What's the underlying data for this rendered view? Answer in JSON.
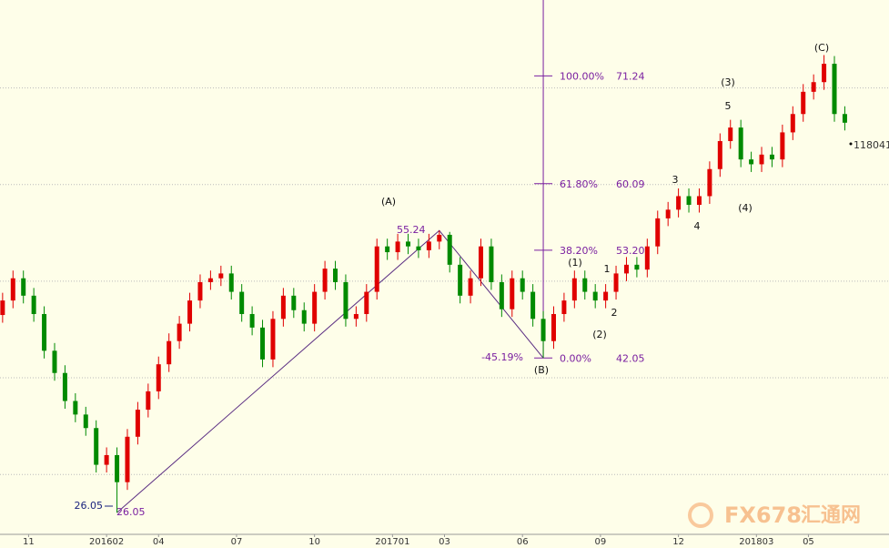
{
  "chart_data": {
    "type": "candlestick",
    "x": [
      -1.0,
      -0.6,
      -0.2,
      0.2,
      0.6,
      1.0,
      1.4,
      1.8,
      2.2,
      2.6,
      3.0,
      3.4,
      3.8,
      4.2,
      4.6,
      5.0,
      5.4,
      5.8,
      6.2,
      6.6,
      7.0,
      7.4,
      7.8,
      8.2,
      8.6,
      9.0,
      9.4,
      9.8,
      10.2,
      10.6,
      11.0,
      11.4,
      11.8,
      12.2,
      12.6,
      13.0,
      13.4,
      13.8,
      14.2,
      14.6,
      15.0,
      15.4,
      15.8,
      16.2,
      16.6,
      17.0,
      17.4,
      17.8,
      18.2,
      18.6,
      19.0,
      19.4,
      19.8,
      20.2,
      20.6,
      21.0,
      21.4,
      21.8,
      22.2,
      22.6,
      23.0,
      23.4,
      23.8,
      24.2,
      24.6,
      25.0,
      25.4,
      25.8,
      26.2,
      26.6,
      27.0,
      27.4,
      27.8,
      28.2,
      28.6,
      29.0,
      29.4,
      29.8,
      30.2,
      30.6,
      31.0,
      31.4
    ],
    "open": [
      46.5,
      48.0,
      50.3,
      48.5,
      46.6,
      42.8,
      40.5,
      37.6,
      36.2,
      34.8,
      31.0,
      32.0,
      29.2,
      33.9,
      36.7,
      38.6,
      41.4,
      43.8,
      45.6,
      48.0,
      49.9,
      50.3,
      50.8,
      48.9,
      46.6,
      45.2,
      41.9,
      46.1,
      48.5,
      47.0,
      45.6,
      48.9,
      51.3,
      49.9,
      46.1,
      46.6,
      48.9,
      53.6,
      53.0,
      54.1,
      53.6,
      53.2,
      54.1,
      54.8,
      51.7,
      48.5,
      50.3,
      53.6,
      49.9,
      47.1,
      50.3,
      48.9,
      46.1,
      43.8,
      46.6,
      48.0,
      50.3,
      48.9,
      48.0,
      48.9,
      50.8,
      51.7,
      51.2,
      53.6,
      56.5,
      57.4,
      58.8,
      57.9,
      58.8,
      61.6,
      64.5,
      65.9,
      62.6,
      62.1,
      63.1,
      62.6,
      65.4,
      67.3,
      69.6,
      70.6,
      72.5,
      67.3
    ],
    "high": [
      48.8,
      51.1,
      51.1,
      49.3,
      47.4,
      43.6,
      41.3,
      38.4,
      37.0,
      35.6,
      32.8,
      32.8,
      34.7,
      37.5,
      39.4,
      42.2,
      44.6,
      46.4,
      48.8,
      50.7,
      51.1,
      51.6,
      51.6,
      49.7,
      47.4,
      46.0,
      46.9,
      49.3,
      49.3,
      47.8,
      49.7,
      52.1,
      52.1,
      50.7,
      47.4,
      49.7,
      54.4,
      54.4,
      54.9,
      54.9,
      54.4,
      54.9,
      55.24,
      55.1,
      52.5,
      51.1,
      54.4,
      54.4,
      50.7,
      51.1,
      51.1,
      49.7,
      46.9,
      47.4,
      48.8,
      51.1,
      51.1,
      49.7,
      49.7,
      51.6,
      52.5,
      52.5,
      54.4,
      57.3,
      58.2,
      59.6,
      59.6,
      59.6,
      62.4,
      65.3,
      66.7,
      66.7,
      63.4,
      63.9,
      63.9,
      66.2,
      68.1,
      70.4,
      71.4,
      73.4,
      73.3,
      68.1
    ],
    "low": [
      45.7,
      47.2,
      47.7,
      45.8,
      42.0,
      39.7,
      36.8,
      35.4,
      34.0,
      30.2,
      30.2,
      26.05,
      28.4,
      33.1,
      35.9,
      37.8,
      40.6,
      43.0,
      44.8,
      47.2,
      49.1,
      49.5,
      48.1,
      45.8,
      44.4,
      41.1,
      41.1,
      45.3,
      46.2,
      44.8,
      44.8,
      48.1,
      49.1,
      45.3,
      45.3,
      45.8,
      48.1,
      52.2,
      52.2,
      52.8,
      52.4,
      52.4,
      53.3,
      50.9,
      47.7,
      47.7,
      49.5,
      49.1,
      46.3,
      46.3,
      48.1,
      45.3,
      42.05,
      43.0,
      45.8,
      47.2,
      48.1,
      47.2,
      47.2,
      48.1,
      50.0,
      50.4,
      50.4,
      52.8,
      55.7,
      56.6,
      57.1,
      57.1,
      58.0,
      60.8,
      63.7,
      61.8,
      61.3,
      61.3,
      61.8,
      61.8,
      64.6,
      66.5,
      68.8,
      69.8,
      66.5,
      65.6
    ],
    "close": [
      48.0,
      50.3,
      48.5,
      46.6,
      42.8,
      40.5,
      37.6,
      36.2,
      34.8,
      31.0,
      32.0,
      29.2,
      33.9,
      36.7,
      38.6,
      41.4,
      43.8,
      45.6,
      48.0,
      49.9,
      50.3,
      50.8,
      48.9,
      46.6,
      45.2,
      41.9,
      46.1,
      48.5,
      47.0,
      45.6,
      48.9,
      51.3,
      49.9,
      46.1,
      46.6,
      48.9,
      53.6,
      53.0,
      54.1,
      53.6,
      53.2,
      54.1,
      54.8,
      51.7,
      48.5,
      50.3,
      53.6,
      49.9,
      47.1,
      50.3,
      48.9,
      46.1,
      43.8,
      46.6,
      48.0,
      50.3,
      48.9,
      48.0,
      48.9,
      50.8,
      51.7,
      51.2,
      53.6,
      56.5,
      57.4,
      58.8,
      57.9,
      58.8,
      61.6,
      64.5,
      65.9,
      62.6,
      62.1,
      63.1,
      62.6,
      65.4,
      67.3,
      69.6,
      70.6,
      72.5,
      67.3,
      66.4
    ],
    "up_color": "#e00000",
    "down_color": "#008a00",
    "xlim": [
      -1.1,
      33.1
    ],
    "ylim": [
      23.8,
      79.1
    ],
    "xticks": [
      {
        "value": 0,
        "label": "11"
      },
      {
        "value": 3,
        "label": "201602"
      },
      {
        "value": 5,
        "label": "04"
      },
      {
        "value": 8,
        "label": "07"
      },
      {
        "value": 11,
        "label": "10"
      },
      {
        "value": 14,
        "label": "201701"
      },
      {
        "value": 16,
        "label": "03"
      },
      {
        "value": 19,
        "label": "06"
      },
      {
        "value": 22,
        "label": "09"
      },
      {
        "value": 25,
        "label": "12"
      },
      {
        "value": 28,
        "label": "201803"
      },
      {
        "value": 30,
        "label": "05"
      }
    ],
    "yticks": [
      30,
      40,
      50,
      60,
      70
    ],
    "grid": true,
    "fib": {
      "ratios": [
        "100.00%",
        "61.80%",
        "38.20%",
        "0.00%"
      ],
      "values": [
        71.24,
        60.09,
        53.2,
        42.05
      ],
      "value_labels": [
        "71.24",
        "60.09",
        "53.20",
        "42.05"
      ],
      "color": "#7a1fa0"
    },
    "annotations": {
      "low_left": "26.05",
      "low_right": "26.05",
      "a_price": "55.24",
      "retrace": "-45.19%",
      "last_price": "118041"
    },
    "waves": {
      "A": "(A)",
      "B": "(B)",
      "C": "(C)",
      "w1": "(1)",
      "w2": "(2)",
      "w3": "(3)",
      "w4": "(4)",
      "s1": "1",
      "s2": "2",
      "s3": "3",
      "s4": "4",
      "s5": "5"
    },
    "watermark": "FX678",
    "watermark_cn": "汇通网"
  }
}
